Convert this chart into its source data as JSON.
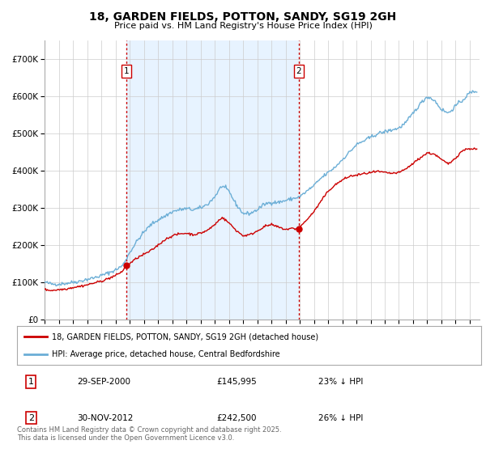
{
  "title_line1": "18, GARDEN FIELDS, POTTON, SANDY, SG19 2GH",
  "title_line2": "Price paid vs. HM Land Registry's House Price Index (HPI)",
  "red_label": "18, GARDEN FIELDS, POTTON, SANDY, SG19 2GH (detached house)",
  "blue_label": "HPI: Average price, detached house, Central Bedfordshire",
  "marker1_date": "29-SEP-2000",
  "marker1_price": "£145,995",
  "marker1_hpi": "23% ↓ HPI",
  "marker2_date": "30-NOV-2012",
  "marker2_price": "£242,500",
  "marker2_hpi": "26% ↓ HPI",
  "footnote": "Contains HM Land Registry data © Crown copyright and database right 2025.\nThis data is licensed under the Open Government Licence v3.0.",
  "red_color": "#cc0000",
  "blue_color": "#6baed6",
  "vline_color": "#cc0000",
  "grid_color": "#cccccc",
  "bg_color": "#ffffff",
  "plot_bg_color": "#ffffff",
  "highlight_bg": "#ddeeff",
  "ylim": [
    0,
    750000
  ],
  "yticks": [
    0,
    100000,
    200000,
    300000,
    400000,
    500000,
    600000,
    700000
  ],
  "ytick_labels": [
    "£0",
    "£100K",
    "£200K",
    "£300K",
    "£400K",
    "£500K",
    "£600K",
    "£700K"
  ],
  "marker1_x": 2000.75,
  "marker2_x": 2012.917
}
